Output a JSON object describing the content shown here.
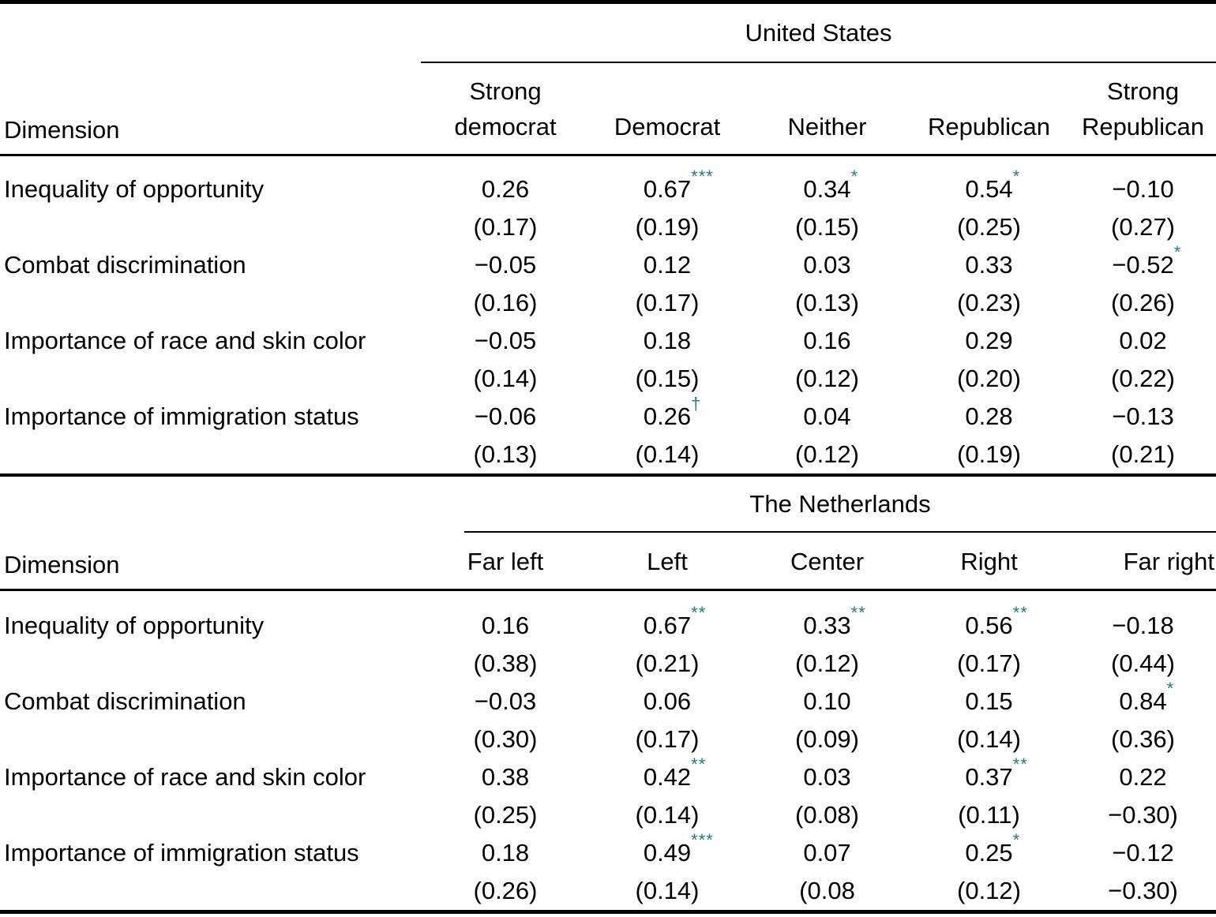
{
  "accent_color": "#277b74",
  "panels": [
    {
      "region": "United States",
      "dimension_label": "Dimension",
      "columns": [
        "Strong democrat",
        "Democrat",
        "Neither",
        "Republican",
        "Strong Republican"
      ],
      "rows": [
        {
          "dimension": "Inequality of opportunity",
          "estimates": [
            {
              "text": "0.26"
            },
            {
              "text": "0.67",
              "sig": "***"
            },
            {
              "text": "0.34",
              "sig": "*"
            },
            {
              "text": "0.54",
              "sig": "*"
            },
            {
              "text": "−0.10"
            }
          ],
          "se": [
            "(0.17)",
            "(0.19)",
            "(0.15)",
            "(0.25)",
            "(0.27)"
          ]
        },
        {
          "dimension": "Combat discrimination",
          "estimates": [
            {
              "text": "−0.05"
            },
            {
              "text": "0.12"
            },
            {
              "text": "0.03"
            },
            {
              "text": "0.33"
            },
            {
              "text": "−0.52",
              "sig": "*"
            }
          ],
          "se": [
            "(0.16)",
            "(0.17)",
            "(0.13)",
            "(0.23)",
            "(0.26)"
          ]
        },
        {
          "dimension": "Importance of race and skin color",
          "estimates": [
            {
              "text": "−0.05"
            },
            {
              "text": "0.18"
            },
            {
              "text": "0.16"
            },
            {
              "text": "0.29"
            },
            {
              "text": "0.02"
            }
          ],
          "se": [
            "(0.14)",
            "(0.15)",
            "(0.12)",
            "(0.20)",
            "(0.22)"
          ]
        },
        {
          "dimension": "Importance of immigration status",
          "estimates": [
            {
              "text": "−0.06"
            },
            {
              "text": "0.26",
              "sig": "†"
            },
            {
              "text": "0.04"
            },
            {
              "text": "0.28"
            },
            {
              "text": "−0.13"
            }
          ],
          "se": [
            "(0.13)",
            "(0.14)",
            "(0.12)",
            "(0.19)",
            "(0.21)"
          ]
        }
      ]
    },
    {
      "region": "The Netherlands",
      "dimension_label": "Dimension",
      "columns": [
        "Far left",
        "Left",
        "Center",
        "Right",
        "Far right"
      ],
      "rows": [
        {
          "dimension": "Inequality of opportunity",
          "estimates": [
            {
              "text": "0.16"
            },
            {
              "text": "0.67",
              "sig": "**"
            },
            {
              "text": "0.33",
              "sig": "**"
            },
            {
              "text": "0.56",
              "sig": "**"
            },
            {
              "text": "−0.18"
            }
          ],
          "se": [
            "(0.38)",
            "(0.21)",
            "(0.12)",
            "(0.17)",
            "(0.44)"
          ]
        },
        {
          "dimension": "Combat discrimination",
          "estimates": [
            {
              "text": "−0.03"
            },
            {
              "text": "0.06"
            },
            {
              "text": "0.10"
            },
            {
              "text": "0.15"
            },
            {
              "text": "0.84",
              "sig": "*"
            }
          ],
          "se": [
            "(0.30)",
            "(0.17)",
            "(0.09)",
            "(0.14)",
            "(0.36)"
          ]
        },
        {
          "dimension": "Importance of race and skin color",
          "estimates": [
            {
              "text": "0.38"
            },
            {
              "text": "0.42",
              "sig": "**"
            },
            {
              "text": "0.03"
            },
            {
              "text": "0.37",
              "sig": "**"
            },
            {
              "text": "0.22"
            }
          ],
          "se": [
            "(0.25)",
            "(0.14)",
            "(0.08)",
            "(0.11)",
            "−0.30)"
          ]
        },
        {
          "dimension": "Importance of immigration status",
          "estimates": [
            {
              "text": "0.18"
            },
            {
              "text": "0.49",
              "sig": "***"
            },
            {
              "text": "0.07"
            },
            {
              "text": "0.25",
              "sig": "*"
            },
            {
              "text": "−0.12"
            }
          ],
          "se": [
            "(0.26)",
            "(0.14)",
            "(0.08",
            "(0.12)",
            "−0.30)"
          ]
        }
      ]
    }
  ]
}
